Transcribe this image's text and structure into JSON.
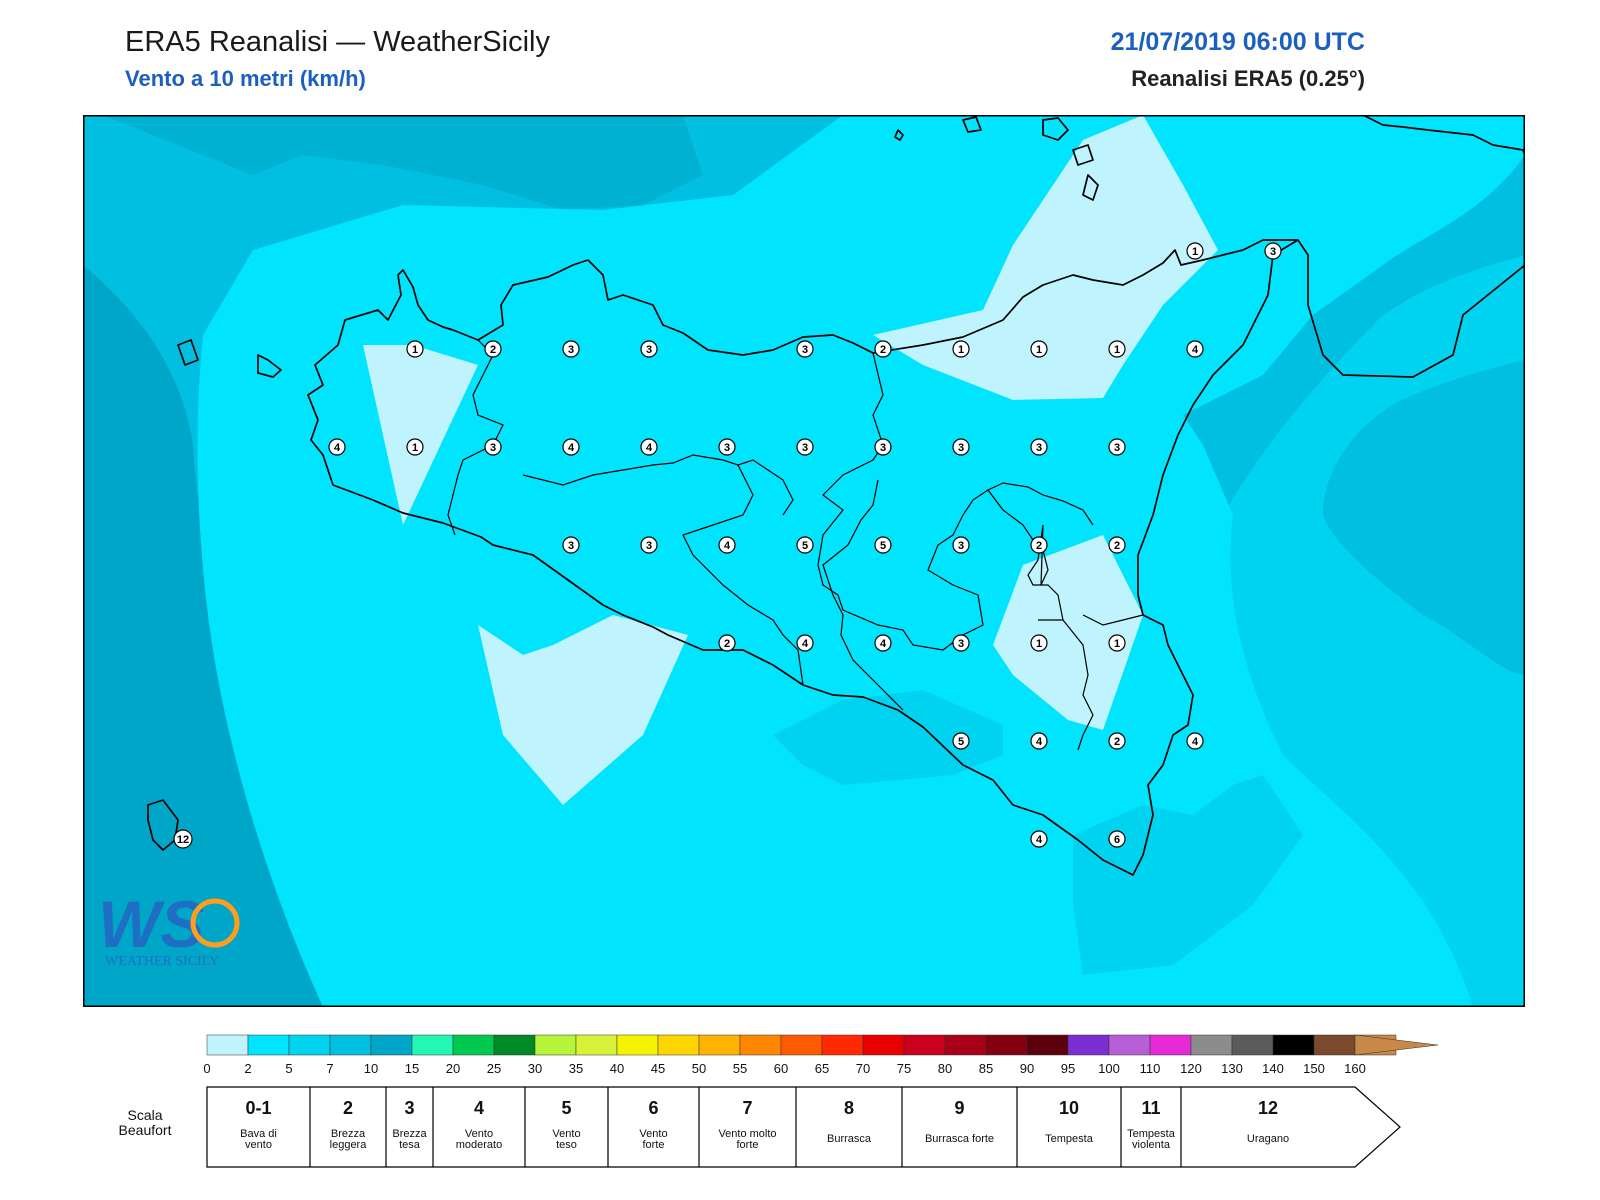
{
  "header": {
    "title": "ERA5 Reanalisi — WeatherSicily",
    "subtitle": "Vento a 10 metri (km/h)",
    "datetime": "21/07/2019 06:00 UTC",
    "model": "Reanalisi ERA5 (0.25°)"
  },
  "logo": {
    "text": "WEATHER SICILY",
    "letters": "WS"
  },
  "beaufort_labels": [
    {
      "v": "1"
    },
    {
      "v": "2"
    },
    {
      "v": "3"
    },
    {
      "v": "3"
    },
    {
      "v": "3"
    },
    {
      "v": "2"
    },
    {
      "v": "1"
    },
    {
      "v": "1"
    },
    {
      "v": "1"
    },
    {
      "v": "4"
    },
    {
      "v": "4"
    },
    {
      "v": "1"
    },
    {
      "v": "3"
    },
    {
      "v": "4"
    },
    {
      "v": "4"
    },
    {
      "v": "3"
    },
    {
      "v": "3"
    },
    {
      "v": "3"
    },
    {
      "v": "3"
    },
    {
      "v": "3"
    },
    {
      "v": "3"
    },
    {
      "v": "3"
    },
    {
      "v": "3"
    },
    {
      "v": "4"
    },
    {
      "v": "5"
    },
    {
      "v": "5"
    },
    {
      "v": "3"
    },
    {
      "v": "2"
    },
    {
      "v": "2"
    },
    {
      "v": "2"
    },
    {
      "v": "4"
    },
    {
      "v": "4"
    },
    {
      "v": "3"
    },
    {
      "v": "1"
    },
    {
      "v": "1"
    },
    {
      "v": "5"
    },
    {
      "v": "4"
    },
    {
      "v": "2"
    },
    {
      "v": "4"
    },
    {
      "v": "4"
    },
    {
      "v": "6"
    },
    {
      "v": "1"
    },
    {
      "v": "3"
    },
    {
      "v": "12"
    }
  ],
  "colorbar": {
    "ticks": [
      "0",
      "2",
      "5",
      "7",
      "10",
      "15",
      "20",
      "25",
      "30",
      "35",
      "40",
      "45",
      "50",
      "55",
      "60",
      "65",
      "70",
      "75",
      "80",
      "85",
      "90",
      "95",
      "100",
      "110",
      "120",
      "130",
      "140",
      "150",
      "160"
    ],
    "colors": [
      "#bff3fd",
      "#00e5fd",
      "#00d3f0",
      "#00bfe0",
      "#00a6c7",
      "#22f7b4",
      "#00c94f",
      "#008a27",
      "#b7f53a",
      "#d8f23a",
      "#f4f400",
      "#ffd500",
      "#ffb200",
      "#ff8700",
      "#ff5a00",
      "#ff2a00",
      "#e80000",
      "#c9001e",
      "#a80018",
      "#820010",
      "#5c000b",
      "#7a2fd0",
      "#b85ed6",
      "#e62ad6",
      "#8c8c8c",
      "#5b5b5b",
      "#000000",
      "#7b4a2c",
      "#c88848"
    ]
  },
  "beaufort_scale": {
    "title": "Scala Beaufort",
    "items": [
      {
        "n": "0-1",
        "desc": "Bava di vento"
      },
      {
        "n": "2",
        "desc": "Brezza leggera"
      },
      {
        "n": "3",
        "desc": "Brezza tesa"
      },
      {
        "n": "4",
        "desc": "Vento moderato"
      },
      {
        "n": "5",
        "desc": "Vento teso"
      },
      {
        "n": "6",
        "desc": "Vento forte"
      },
      {
        "n": "7",
        "desc": "Vento molto forte"
      },
      {
        "n": "8",
        "desc": "Burrasca"
      },
      {
        "n": "9",
        "desc": "Burrasca forte"
      },
      {
        "n": "10",
        "desc": "Tempesta"
      },
      {
        "n": "11",
        "desc": "Tempesta violenta"
      },
      {
        "n": "12",
        "desc": "Uragano"
      }
    ]
  }
}
